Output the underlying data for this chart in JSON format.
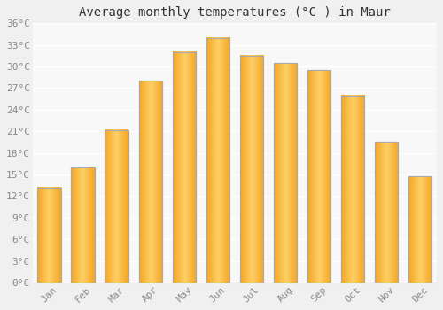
{
  "title": "Average monthly temperatures (°C ) in Maur",
  "months": [
    "Jan",
    "Feb",
    "Mar",
    "Apr",
    "May",
    "Jun",
    "Jul",
    "Aug",
    "Sep",
    "Oct",
    "Nov",
    "Dec"
  ],
  "values": [
    13.2,
    16.0,
    21.2,
    28.0,
    32.0,
    34.0,
    31.5,
    30.5,
    29.5,
    26.0,
    19.5,
    14.7
  ],
  "bar_color": "#F5A623",
  "bar_color_light": "#FDD067",
  "ylim": [
    0,
    36
  ],
  "yticks": [
    0,
    3,
    6,
    9,
    12,
    15,
    18,
    21,
    24,
    27,
    30,
    33,
    36
  ],
  "ytick_labels": [
    "0°C",
    "3°C",
    "6°C",
    "9°C",
    "12°C",
    "15°C",
    "18°C",
    "21°C",
    "24°C",
    "27°C",
    "30°C",
    "33°C",
    "36°C"
  ],
  "bg_color": "#f0f0f0",
  "plot_bg_color": "#f8f8f8",
  "grid_color": "#ffffff",
  "bar_edge_color": "#aaaaaa",
  "title_fontsize": 10,
  "tick_fontsize": 8,
  "tick_color": "#888888"
}
